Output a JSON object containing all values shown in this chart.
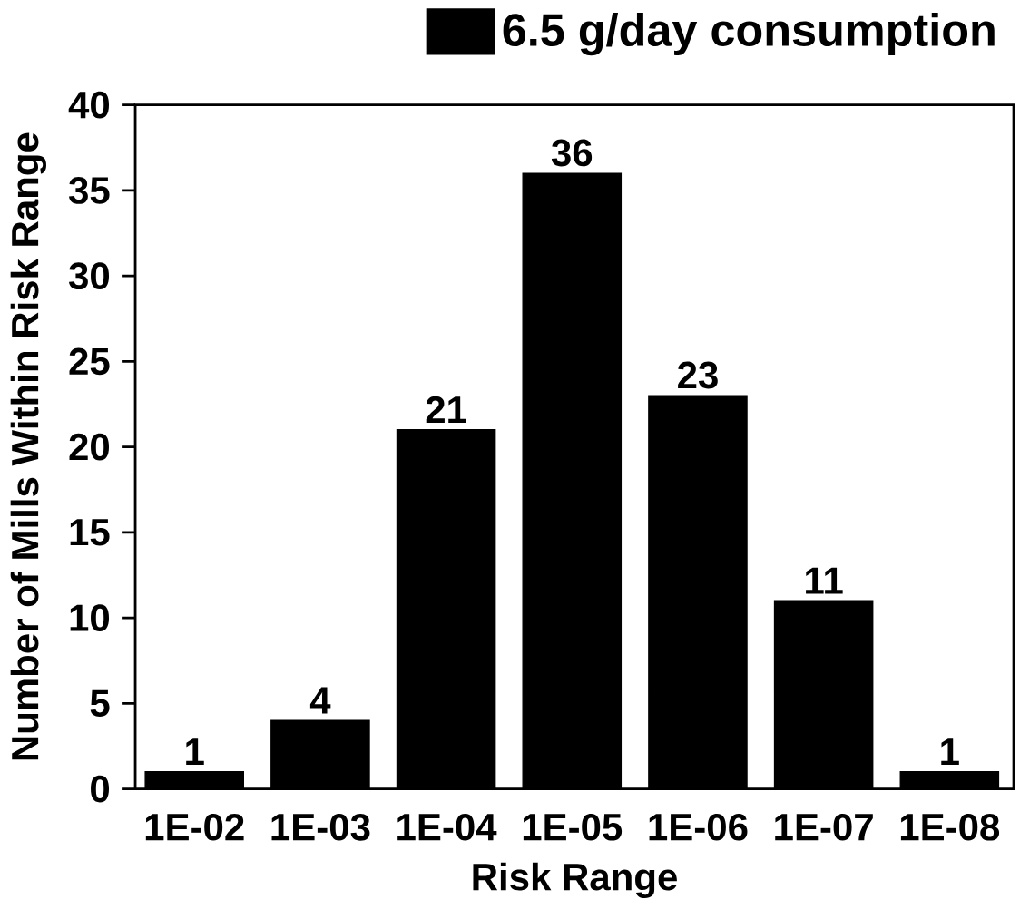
{
  "chart_data": {
    "type": "bar",
    "xlabel": "Risk Range",
    "ylabel": "Number of Mills Within Risk Range",
    "categories": [
      "1E-02",
      "1E-03",
      "1E-04",
      "1E-05",
      "1E-06",
      "1E-07",
      "1E-08"
    ],
    "series": [
      {
        "name": "6.5 g/day consumption",
        "color": "#000000",
        "values": [
          1,
          4,
          21,
          36,
          23,
          11,
          1
        ]
      }
    ],
    "ylim": [
      0,
      40
    ],
    "yticks": [
      0,
      5,
      10,
      15,
      20,
      25,
      30,
      35,
      40
    ],
    "data_labels": true,
    "grid": false,
    "legend": "top right"
  }
}
